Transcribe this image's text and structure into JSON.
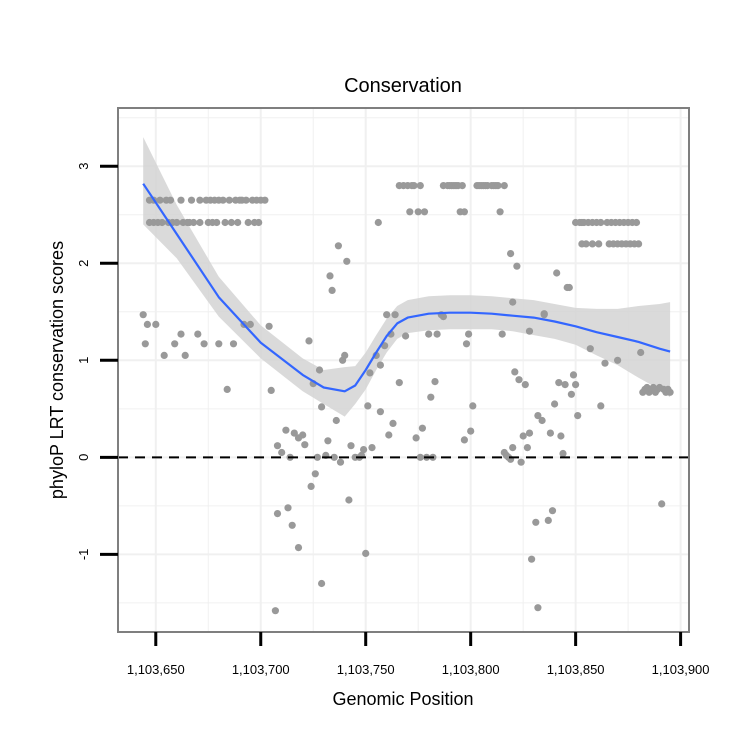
{
  "chart_data": {
    "type": "scatter",
    "title": "Conservation",
    "xlabel": "Genomic Position",
    "ylabel": "phyloP LRT conservation scores",
    "xlim": [
      1103632,
      1103904
    ],
    "ylim": [
      -1.8,
      3.6
    ],
    "xticks": [
      1103650,
      1103700,
      1103750,
      1103800,
      1103850,
      1103900
    ],
    "xtick_labels": [
      "1,103,650",
      "1,103,700",
      "1,103,750",
      "1,103,800",
      "1,103,850",
      "1,103,900"
    ],
    "yticks": [
      -1,
      0,
      1,
      2,
      3
    ],
    "ytick_labels": [
      "-1",
      "0",
      "1",
      "2",
      "3"
    ],
    "grid": true,
    "reference_line": {
      "y": 0,
      "style": "dashed"
    },
    "colors": {
      "points": "#999999",
      "smooth": "#3366ff",
      "band": "#d3d3d3",
      "grid": "#f0f0f0",
      "frame": "#7f7f7f"
    },
    "points": [
      [
        1103644,
        1.47
      ],
      [
        1103645,
        1.17
      ],
      [
        1103646,
        1.37
      ],
      [
        1103647,
        2.65
      ],
      [
        1103647,
        2.42
      ],
      [
        1103649,
        2.65
      ],
      [
        1103649,
        2.42
      ],
      [
        1103650,
        1.37
      ],
      [
        1103651,
        2.42
      ],
      [
        1103652,
        2.65
      ],
      [
        1103653,
        2.42
      ],
      [
        1103654,
        1.05
      ],
      [
        1103655,
        2.65
      ],
      [
        1103656,
        2.42
      ],
      [
        1103657,
        2.65
      ],
      [
        1103658,
        2.42
      ],
      [
        1103659,
        1.17
      ],
      [
        1103660,
        2.42
      ],
      [
        1103662,
        2.65
      ],
      [
        1103662,
        1.27
      ],
      [
        1103663,
        2.42
      ],
      [
        1103664,
        1.05
      ],
      [
        1103665,
        2.42
      ],
      [
        1103666,
        2.42
      ],
      [
        1103667,
        2.65
      ],
      [
        1103668,
        2.42
      ],
      [
        1103670,
        1.27
      ],
      [
        1103671,
        2.65
      ],
      [
        1103671,
        2.42
      ],
      [
        1103673,
        1.17
      ],
      [
        1103674,
        2.65
      ],
      [
        1103675,
        2.42
      ],
      [
        1103676,
        2.65
      ],
      [
        1103677,
        2.42
      ],
      [
        1103678,
        2.65
      ],
      [
        1103679,
        2.42
      ],
      [
        1103680,
        2.65
      ],
      [
        1103680,
        1.17
      ],
      [
        1103682,
        2.65
      ],
      [
        1103683,
        2.42
      ],
      [
        1103684,
        0.7
      ],
      [
        1103685,
        2.65
      ],
      [
        1103686,
        2.42
      ],
      [
        1103687,
        1.17
      ],
      [
        1103688,
        2.65
      ],
      [
        1103689,
        2.42
      ],
      [
        1103690,
        2.65
      ],
      [
        1103691,
        2.65
      ],
      [
        1103692,
        1.37
      ],
      [
        1103693,
        2.65
      ],
      [
        1103694,
        2.42
      ],
      [
        1103695,
        1.37
      ],
      [
        1103696,
        2.65
      ],
      [
        1103697,
        2.42
      ],
      [
        1103698,
        2.65
      ],
      [
        1103699,
        2.42
      ],
      [
        1103700,
        2.65
      ],
      [
        1103702,
        2.65
      ],
      [
        1103704,
        1.35
      ],
      [
        1103705,
        0.69
      ],
      [
        1103707,
        -1.58
      ],
      [
        1103708,
        0.12
      ],
      [
        1103708,
        -0.58
      ],
      [
        1103710,
        0.05
      ],
      [
        1103712,
        0.28
      ],
      [
        1103713,
        -0.52
      ],
      [
        1103714,
        0.0
      ],
      [
        1103715,
        -0.7
      ],
      [
        1103716,
        0.25
      ],
      [
        1103718,
        0.2
      ],
      [
        1103718,
        -0.93
      ],
      [
        1103720,
        0.23
      ],
      [
        1103721,
        0.13
      ],
      [
        1103723,
        1.2
      ],
      [
        1103724,
        -0.3
      ],
      [
        1103725,
        0.76
      ],
      [
        1103726,
        -0.17
      ],
      [
        1103727,
        0.0
      ],
      [
        1103728,
        0.9
      ],
      [
        1103729,
        -1.3
      ],
      [
        1103729,
        0.52
      ],
      [
        1103731,
        0.02
      ],
      [
        1103732,
        0.17
      ],
      [
        1103733,
        1.87
      ],
      [
        1103734,
        1.72
      ],
      [
        1103735,
        0.0
      ],
      [
        1103736,
        0.38
      ],
      [
        1103737,
        2.18
      ],
      [
        1103738,
        -0.05
      ],
      [
        1103739,
        1.0
      ],
      [
        1103740,
        1.05
      ],
      [
        1103741,
        2.02
      ],
      [
        1103742,
        -0.44
      ],
      [
        1103743,
        0.12
      ],
      [
        1103745,
        0.0
      ],
      [
        1103747,
        0.0
      ],
      [
        1103748,
        0.02
      ],
      [
        1103749,
        0.08
      ],
      [
        1103750,
        -0.99
      ],
      [
        1103751,
        0.53
      ],
      [
        1103752,
        0.87
      ],
      [
        1103753,
        0.1
      ],
      [
        1103755,
        1.05
      ],
      [
        1103756,
        2.42
      ],
      [
        1103757,
        0.47
      ],
      [
        1103757,
        0.95
      ],
      [
        1103759,
        1.15
      ],
      [
        1103760,
        1.47
      ],
      [
        1103761,
        0.23
      ],
      [
        1103762,
        1.27
      ],
      [
        1103763,
        0.35
      ],
      [
        1103764,
        1.47
      ],
      [
        1103766,
        0.77
      ],
      [
        1103766,
        2.8
      ],
      [
        1103768,
        2.8
      ],
      [
        1103769,
        1.25
      ],
      [
        1103770,
        2.8
      ],
      [
        1103771,
        2.53
      ],
      [
        1103772,
        2.8
      ],
      [
        1103773,
        2.8
      ],
      [
        1103774,
        0.2
      ],
      [
        1103775,
        2.53
      ],
      [
        1103776,
        2.8
      ],
      [
        1103776,
        0.0
      ],
      [
        1103777,
        0.3
      ],
      [
        1103778,
        2.53
      ],
      [
        1103779,
        0.0
      ],
      [
        1103780,
        1.27
      ],
      [
        1103781,
        0.62
      ],
      [
        1103782,
        0.0
      ],
      [
        1103783,
        0.78
      ],
      [
        1103784,
        1.27
      ],
      [
        1103786,
        1.47
      ],
      [
        1103787,
        1.45
      ],
      [
        1103787,
        2.8
      ],
      [
        1103789,
        2.8
      ],
      [
        1103790,
        2.8
      ],
      [
        1103791,
        2.8
      ],
      [
        1103792,
        2.8
      ],
      [
        1103793,
        2.8
      ],
      [
        1103794,
        2.8
      ],
      [
        1103795,
        2.53
      ],
      [
        1103796,
        2.8
      ],
      [
        1103797,
        2.53
      ],
      [
        1103797,
        0.18
      ],
      [
        1103798,
        1.17
      ],
      [
        1103799,
        1.27
      ],
      [
        1103800,
        0.27
      ],
      [
        1103801,
        0.53
      ],
      [
        1103803,
        2.8
      ],
      [
        1103804,
        2.8
      ],
      [
        1103805,
        2.8
      ],
      [
        1103806,
        2.8
      ],
      [
        1103807,
        2.8
      ],
      [
        1103808,
        2.8
      ],
      [
        1103810,
        2.8
      ],
      [
        1103811,
        2.8
      ],
      [
        1103812,
        2.8
      ],
      [
        1103813,
        2.8
      ],
      [
        1103814,
        2.53
      ],
      [
        1103815,
        1.27
      ],
      [
        1103816,
        0.05
      ],
      [
        1103816,
        2.8
      ],
      [
        1103817,
        0.02
      ],
      [
        1103818,
        0.0
      ],
      [
        1103819,
        2.1
      ],
      [
        1103819,
        -0.02
      ],
      [
        1103820,
        1.6
      ],
      [
        1103820,
        0.1
      ],
      [
        1103821,
        0.88
      ],
      [
        1103822,
        1.97
      ],
      [
        1103823,
        0.8
      ],
      [
        1103824,
        -0.05
      ],
      [
        1103825,
        0.22
      ],
      [
        1103826,
        0.75
      ],
      [
        1103827,
        0.1
      ],
      [
        1103828,
        0.25
      ],
      [
        1103828,
        1.3
      ],
      [
        1103829,
        -1.05
      ],
      [
        1103831,
        -0.67
      ],
      [
        1103832,
        0.43
      ],
      [
        1103832,
        -1.55
      ],
      [
        1103834,
        0.38
      ],
      [
        1103835,
        1.47
      ],
      [
        1103835,
        1.48
      ],
      [
        1103837,
        -0.65
      ],
      [
        1103838,
        0.25
      ],
      [
        1103839,
        -0.55
      ],
      [
        1103840,
        0.55
      ],
      [
        1103841,
        1.9
      ],
      [
        1103842,
        0.77
      ],
      [
        1103843,
        0.22
      ],
      [
        1103844,
        0.04
      ],
      [
        1103845,
        0.75
      ],
      [
        1103846,
        1.75
      ],
      [
        1103847,
        1.75
      ],
      [
        1103848,
        0.65
      ],
      [
        1103849,
        0.85
      ],
      [
        1103850,
        0.75
      ],
      [
        1103850,
        2.42
      ],
      [
        1103851,
        0.43
      ],
      [
        1103852,
        2.42
      ],
      [
        1103853,
        2.42
      ],
      [
        1103853,
        2.2
      ],
      [
        1103854,
        2.42
      ],
      [
        1103855,
        2.2
      ],
      [
        1103856,
        2.42
      ],
      [
        1103857,
        1.12
      ],
      [
        1103858,
        2.42
      ],
      [
        1103858,
        2.2
      ],
      [
        1103860,
        2.42
      ],
      [
        1103861,
        2.2
      ],
      [
        1103862,
        2.42
      ],
      [
        1103862,
        0.53
      ],
      [
        1103864,
        0.97
      ],
      [
        1103865,
        2.42
      ],
      [
        1103866,
        2.2
      ],
      [
        1103867,
        2.42
      ],
      [
        1103868,
        2.2
      ],
      [
        1103869,
        2.42
      ],
      [
        1103870,
        1.0
      ],
      [
        1103870,
        2.2
      ],
      [
        1103871,
        2.42
      ],
      [
        1103872,
        2.2
      ],
      [
        1103873,
        2.42
      ],
      [
        1103874,
        2.2
      ],
      [
        1103875,
        2.42
      ],
      [
        1103876,
        2.2
      ],
      [
        1103877,
        2.42
      ],
      [
        1103878,
        2.2
      ],
      [
        1103879,
        2.42
      ],
      [
        1103880,
        2.2
      ],
      [
        1103881,
        1.08
      ],
      [
        1103882,
        0.67
      ],
      [
        1103883,
        0.7
      ],
      [
        1103884,
        0.72
      ],
      [
        1103885,
        0.67
      ],
      [
        1103886,
        0.7
      ],
      [
        1103887,
        0.72
      ],
      [
        1103888,
        0.67
      ],
      [
        1103889,
        0.7
      ],
      [
        1103890,
        0.72
      ],
      [
        1103891,
        -0.48
      ],
      [
        1103892,
        0.7
      ],
      [
        1103893,
        0.67
      ],
      [
        1103894,
        0.7
      ],
      [
        1103895,
        0.67
      ]
    ],
    "smooth": {
      "x": [
        1103644,
        1103660,
        1103680,
        1103700,
        1103720,
        1103730,
        1103740,
        1103745,
        1103750,
        1103755,
        1103760,
        1103765,
        1103770,
        1103780,
        1103790,
        1103800,
        1103810,
        1103820,
        1103830,
        1103840,
        1103850,
        1103860,
        1103870,
        1103880,
        1103890,
        1103895
      ],
      "y": [
        2.82,
        2.3,
        1.65,
        1.18,
        0.85,
        0.72,
        0.68,
        0.74,
        0.9,
        1.08,
        1.25,
        1.38,
        1.44,
        1.48,
        1.49,
        1.49,
        1.48,
        1.46,
        1.44,
        1.4,
        1.35,
        1.29,
        1.24,
        1.19,
        1.12,
        1.09
      ],
      "lower": [
        2.4,
        2.05,
        1.45,
        1.02,
        0.68,
        0.55,
        0.42,
        0.55,
        0.7,
        0.9,
        1.08,
        1.22,
        1.28,
        1.31,
        1.32,
        1.32,
        1.32,
        1.3,
        1.26,
        1.22,
        1.16,
        1.05,
        0.95,
        0.82,
        0.7,
        0.62
      ],
      "upper": [
        3.3,
        2.6,
        1.86,
        1.36,
        1.02,
        0.9,
        0.93,
        0.94,
        1.08,
        1.26,
        1.43,
        1.56,
        1.62,
        1.66,
        1.67,
        1.67,
        1.66,
        1.64,
        1.62,
        1.58,
        1.54,
        1.53,
        1.53,
        1.56,
        1.58,
        1.6
      ]
    }
  }
}
